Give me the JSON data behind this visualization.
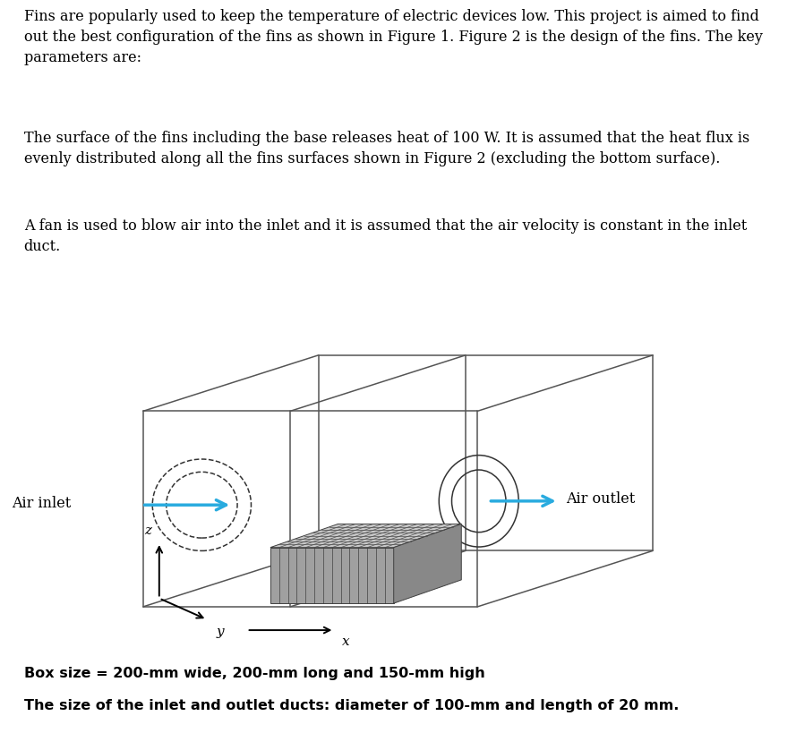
{
  "text_paragraphs": [
    "Fins are popularly used to keep the temperature of electric devices low. This project is aimed to find\nout the best configuration of the fins as shown in Figure 1. Figure 2 is the design of the fins. The key\nparameters are:",
    "The surface of the fins including the base releases heat of 100 W. It is assumed that the heat flux is\nevenly distributed along all the fins surfaces shown in Figure 2 (excluding the bottom surface).",
    "A fan is used to blow air into the inlet and it is assumed that the air velocity is constant in the inlet\nduct."
  ],
  "caption_lines": [
    "Box size = 200-mm wide, 200-mm long and 150-mm high",
    "The size of the inlet and outlet ducts: diameter of 100-mm and length of 20 mm."
  ],
  "air_inlet_label": "Air inlet",
  "air_outlet_label": "Air outlet",
  "arrow_color": "#29ABDF",
  "box_color": "#555555",
  "background": "#FFFFFF",
  "text_fontsize": 11.5,
  "caption_fontsize": 11.5
}
